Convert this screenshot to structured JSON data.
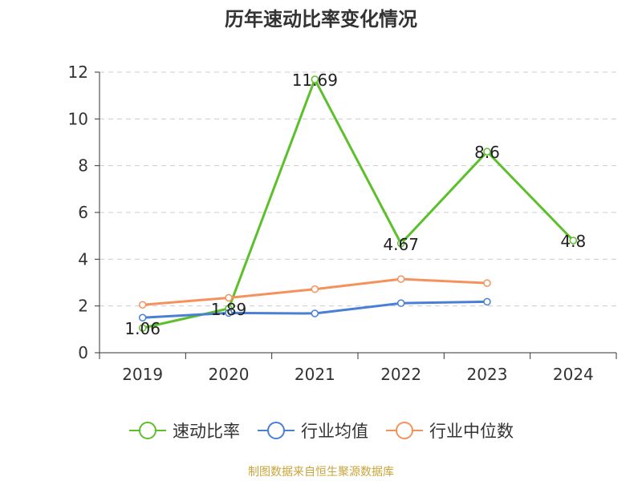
{
  "chart_data": {
    "type": "line",
    "title": "历年速动比率变化情况",
    "categories": [
      "2019",
      "2020",
      "2021",
      "2022",
      "2023",
      "2024"
    ],
    "ylim": [
      0,
      12
    ],
    "yticks": [
      0,
      2,
      4,
      6,
      8,
      10,
      12
    ],
    "grid": true,
    "legend_position": "bottom",
    "series": [
      {
        "name": "速动比率",
        "color": "#5cc02a",
        "values": [
          1.06,
          1.89,
          11.69,
          4.67,
          8.6,
          4.8
        ],
        "labels": [
          "1.06",
          "1.89",
          "11.69",
          "4.67",
          "8.6",
          "4.8"
        ]
      },
      {
        "name": "行业均值",
        "color": "#4a7fd6",
        "values": [
          1.5,
          1.7,
          1.68,
          2.12,
          2.18,
          null
        ]
      },
      {
        "name": "行业中位数",
        "color": "#f5925c",
        "values": [
          2.05,
          2.35,
          2.72,
          3.15,
          2.98,
          null
        ]
      }
    ]
  },
  "source": "制图数据来自恒生聚源数据库"
}
